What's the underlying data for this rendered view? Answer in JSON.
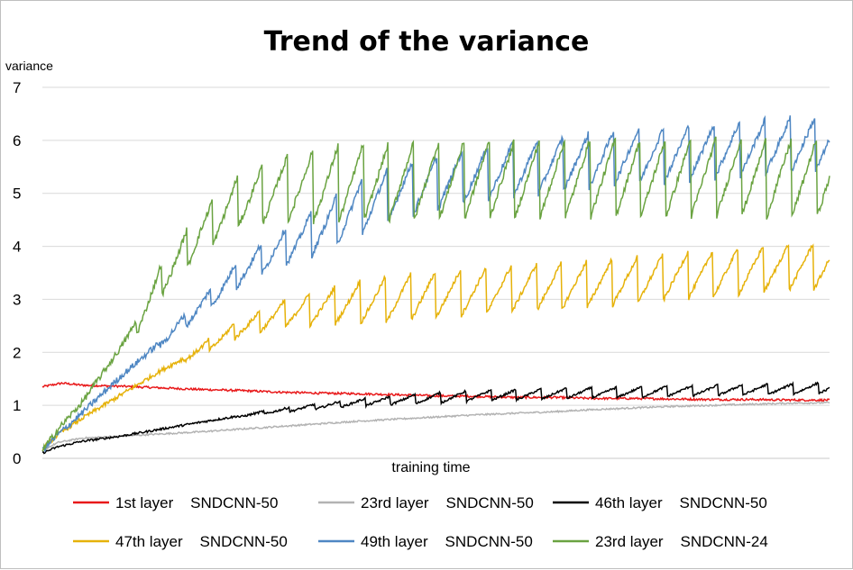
{
  "chart_data": {
    "type": "line",
    "title": "Trend of the variance",
    "xlabel": "training time",
    "ylabel": "variance",
    "ylim": [
      0,
      7
    ],
    "xlim": [
      0,
      1
    ],
    "yticks": [
      "0",
      "1",
      "2",
      "3",
      "4",
      "5",
      "6",
      "7"
    ],
    "grid": true,
    "legend_position": "bottom",
    "series": [
      {
        "name": "1st layer    SNDCNN-50",
        "color": "#e8191a",
        "noise": 0.02,
        "points": [
          [
            0,
            1.35
          ],
          [
            0.025,
            1.42
          ],
          [
            0.05,
            1.38
          ],
          [
            0.1,
            1.36
          ],
          [
            0.15,
            1.33
          ],
          [
            0.2,
            1.3
          ],
          [
            0.25,
            1.28
          ],
          [
            0.3,
            1.25
          ],
          [
            0.35,
            1.23
          ],
          [
            0.4,
            1.22
          ],
          [
            0.45,
            1.2
          ],
          [
            0.5,
            1.18
          ],
          [
            0.55,
            1.17
          ],
          [
            0.6,
            1.15
          ],
          [
            0.65,
            1.15
          ],
          [
            0.7,
            1.13
          ],
          [
            0.75,
            1.13
          ],
          [
            0.8,
            1.12
          ],
          [
            0.85,
            1.11
          ],
          [
            0.9,
            1.11
          ],
          [
            0.95,
            1.1
          ],
          [
            1,
            1.1
          ]
        ]
      },
      {
        "name": "23rd layer    SNDCNN-50",
        "color": "#b3b3b3",
        "noise": 0.015,
        "points": [
          [
            0,
            0.15
          ],
          [
            0.02,
            0.3
          ],
          [
            0.05,
            0.38
          ],
          [
            0.1,
            0.42
          ],
          [
            0.15,
            0.46
          ],
          [
            0.2,
            0.5
          ],
          [
            0.25,
            0.55
          ],
          [
            0.3,
            0.6
          ],
          [
            0.35,
            0.65
          ],
          [
            0.4,
            0.7
          ],
          [
            0.45,
            0.74
          ],
          [
            0.5,
            0.78
          ],
          [
            0.55,
            0.82
          ],
          [
            0.6,
            0.85
          ],
          [
            0.65,
            0.88
          ],
          [
            0.7,
            0.92
          ],
          [
            0.75,
            0.95
          ],
          [
            0.8,
            0.98
          ],
          [
            0.85,
            1.0
          ],
          [
            0.9,
            1.02
          ],
          [
            0.95,
            1.04
          ],
          [
            1,
            1.05
          ]
        ]
      },
      {
        "name": "46th layer    SNDCNN-50",
        "color": "#000000",
        "noise": 0.02,
        "points": [
          [
            0,
            0.1
          ],
          [
            0.02,
            0.22
          ],
          [
            0.05,
            0.32
          ],
          [
            0.1,
            0.42
          ],
          [
            0.15,
            0.55
          ],
          [
            0.2,
            0.68
          ],
          [
            0.25,
            0.8
          ],
          [
            0.3,
            0.9
          ],
          [
            0.35,
            0.98
          ],
          [
            0.4,
            1.05
          ],
          [
            0.45,
            1.1
          ],
          [
            0.5,
            1.14
          ],
          [
            0.55,
            1.18
          ],
          [
            0.6,
            1.2
          ],
          [
            0.65,
            1.22
          ],
          [
            0.7,
            1.24
          ],
          [
            0.75,
            1.25
          ],
          [
            0.8,
            1.27
          ],
          [
            0.85,
            1.28
          ],
          [
            0.9,
            1.3
          ],
          [
            0.95,
            1.31
          ],
          [
            1,
            1.33
          ]
        ],
        "saw": {
          "start": 0.25,
          "period": 0.032,
          "amp": [
            0.04,
            0.2
          ]
        }
      },
      {
        "name": "47th layer    SNDCNN-50",
        "color": "#e6b20a",
        "noise": 0.04,
        "points": [
          [
            0,
            0.18
          ],
          [
            0.02,
            0.45
          ],
          [
            0.05,
            0.75
          ],
          [
            0.1,
            1.2
          ],
          [
            0.15,
            1.65
          ],
          [
            0.2,
            2.05
          ],
          [
            0.25,
            2.45
          ],
          [
            0.3,
            2.7
          ],
          [
            0.35,
            2.85
          ],
          [
            0.4,
            2.95
          ],
          [
            0.45,
            3.0
          ],
          [
            0.5,
            3.1
          ],
          [
            0.55,
            3.15
          ],
          [
            0.6,
            3.2
          ],
          [
            0.65,
            3.25
          ],
          [
            0.7,
            3.3
          ],
          [
            0.75,
            3.35
          ],
          [
            0.8,
            3.42
          ],
          [
            0.85,
            3.48
          ],
          [
            0.9,
            3.55
          ],
          [
            0.95,
            3.6
          ],
          [
            1,
            3.65
          ]
        ],
        "saw": {
          "start": 0.18,
          "period": 0.032,
          "amp": [
            0.1,
            0.9
          ]
        }
      },
      {
        "name": "49th layer    SNDCNN-50",
        "color": "#4f87c3",
        "noise": 0.06,
        "points": [
          [
            0,
            0.15
          ],
          [
            0.02,
            0.45
          ],
          [
            0.05,
            0.85
          ],
          [
            0.1,
            1.55
          ],
          [
            0.15,
            2.2
          ],
          [
            0.2,
            2.85
          ],
          [
            0.25,
            3.5
          ],
          [
            0.3,
            3.95
          ],
          [
            0.35,
            4.3
          ],
          [
            0.4,
            4.7
          ],
          [
            0.45,
            5.0
          ],
          [
            0.5,
            5.2
          ],
          [
            0.55,
            5.35
          ],
          [
            0.6,
            5.45
          ],
          [
            0.65,
            5.55
          ],
          [
            0.7,
            5.62
          ],
          [
            0.75,
            5.7
          ],
          [
            0.8,
            5.75
          ],
          [
            0.85,
            5.8
          ],
          [
            0.9,
            5.85
          ],
          [
            0.95,
            5.9
          ],
          [
            1,
            5.95
          ]
        ],
        "saw": {
          "start": 0.15,
          "period": 0.032,
          "amp": [
            0.15,
            1.05
          ]
        }
      },
      {
        "name": "23rd layer    SNDCNN-24",
        "color": "#6aa341",
        "noise": 0.06,
        "points": [
          [
            0,
            0.15
          ],
          [
            0.02,
            0.55
          ],
          [
            0.05,
            1.05
          ],
          [
            0.1,
            2.1
          ],
          [
            0.15,
            3.35
          ],
          [
            0.2,
            4.25
          ],
          [
            0.25,
            4.85
          ],
          [
            0.3,
            5.1
          ],
          [
            0.35,
            5.15
          ],
          [
            0.4,
            5.2
          ],
          [
            0.45,
            5.22
          ],
          [
            0.5,
            5.25
          ],
          [
            0.55,
            5.25
          ],
          [
            0.6,
            5.27
          ],
          [
            0.65,
            5.28
          ],
          [
            0.7,
            5.28
          ],
          [
            0.75,
            5.3
          ],
          [
            0.8,
            5.3
          ],
          [
            0.85,
            5.3
          ],
          [
            0.9,
            5.3
          ],
          [
            0.95,
            5.3
          ],
          [
            1,
            5.3
          ]
        ],
        "saw": {
          "start": 0.12,
          "period": 0.032,
          "amp": [
            0.5,
            1.5
          ]
        }
      }
    ]
  }
}
